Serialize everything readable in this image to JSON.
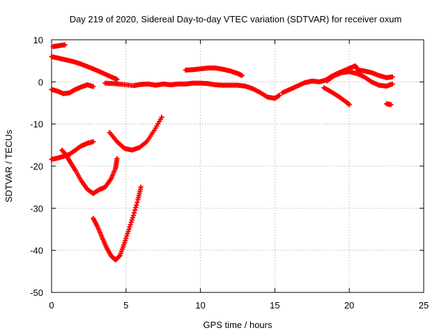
{
  "chart_data": {
    "type": "scatter",
    "title": "Day 219 of 2020, Sidereal Day-to-day VTEC variation (SDTVAR) for receiver oxum",
    "xlabel": "GPS time / hours",
    "ylabel": "SDTVAR / TECUs",
    "xlim": [
      0,
      25
    ],
    "ylim": [
      -50,
      10
    ],
    "xticks": [
      0,
      5,
      10,
      15,
      20,
      25
    ],
    "yticks": [
      10,
      0,
      -10,
      -20,
      -30,
      -40,
      -50
    ],
    "grid": true,
    "series_color": "#ff0000",
    "series": [
      {
        "name": "arc-1",
        "points": [
          [
            0.1,
            8.4
          ],
          [
            0.5,
            8.6
          ],
          [
            0.9,
            8.8
          ]
        ]
      },
      {
        "name": "arc-2",
        "points": [
          [
            0,
            6
          ],
          [
            0.5,
            5.6
          ],
          [
            1,
            5.2
          ],
          [
            1.5,
            4.8
          ],
          [
            2,
            4.2
          ],
          [
            2.5,
            3.5
          ],
          [
            3,
            2.8
          ],
          [
            3.5,
            2
          ],
          [
            4,
            1.2
          ],
          [
            4.4,
            0.6
          ]
        ]
      },
      {
        "name": "arc-3",
        "points": [
          [
            0,
            -1.8
          ],
          [
            0.4,
            -2.2
          ],
          [
            0.8,
            -2.8
          ],
          [
            1.2,
            -2.6
          ],
          [
            1.6,
            -1.8
          ],
          [
            2,
            -1.2
          ],
          [
            2.4,
            -0.7
          ],
          [
            2.8,
            -1.1
          ]
        ]
      },
      {
        "name": "arc-4",
        "points": [
          [
            3.6,
            -0.3
          ],
          [
            4.2,
            -0.4
          ],
          [
            4.8,
            -0.6
          ],
          [
            5.5,
            -0.9
          ],
          [
            6,
            -0.6
          ],
          [
            6.5,
            -0.5
          ],
          [
            7,
            -0.8
          ],
          [
            7.5,
            -0.5
          ],
          [
            8,
            -0.7
          ],
          [
            8.5,
            -0.5
          ],
          [
            9,
            -0.5
          ],
          [
            9.5,
            -0.3
          ],
          [
            10,
            -0.3
          ],
          [
            10.5,
            -0.4
          ],
          [
            11,
            -0.7
          ],
          [
            11.5,
            -0.8
          ],
          [
            12,
            -0.8
          ],
          [
            12.5,
            -0.8
          ],
          [
            13,
            -1
          ],
          [
            13.5,
            -1.6
          ],
          [
            14,
            -2.5
          ],
          [
            14.5,
            -3.6
          ],
          [
            15,
            -3.9
          ],
          [
            15.3,
            -3.2
          ]
        ]
      },
      {
        "name": "arc-5",
        "points": [
          [
            9.0,
            2.8
          ],
          [
            9.5,
            2.9
          ],
          [
            10,
            3.1
          ],
          [
            10.5,
            3.3
          ],
          [
            11,
            3.3
          ],
          [
            11.5,
            3
          ],
          [
            12,
            2.6
          ],
          [
            12.5,
            2
          ],
          [
            12.8,
            1.5
          ]
        ]
      },
      {
        "name": "arc-6",
        "points": [
          [
            15.5,
            -2.6
          ],
          [
            16,
            -1.8
          ],
          [
            16.5,
            -1
          ],
          [
            17,
            -0.2
          ],
          [
            17.5,
            0.2
          ],
          [
            18,
            0
          ],
          [
            18.4,
            0.4
          ],
          [
            18.8,
            1.3
          ],
          [
            19.2,
            2
          ],
          [
            19.6,
            2.6
          ],
          [
            20,
            3.2
          ],
          [
            20.4,
            3.8
          ],
          [
            20.6,
            2.8
          ],
          [
            21,
            2.6
          ],
          [
            21.5,
            2.2
          ],
          [
            22,
            1.5
          ],
          [
            22.5,
            1
          ],
          [
            22.9,
            1.2
          ]
        ]
      },
      {
        "name": "arc-7",
        "points": [
          [
            18.5,
            0.2
          ],
          [
            19,
            1.5
          ],
          [
            19.5,
            2.2
          ],
          [
            20,
            2.4
          ],
          [
            20.5,
            2
          ],
          [
            21,
            1.2
          ],
          [
            21.5,
            0
          ],
          [
            22,
            -0.8
          ],
          [
            22.5,
            -1
          ],
          [
            22.9,
            -0.5
          ]
        ]
      },
      {
        "name": "arc-8",
        "points": [
          [
            18.3,
            -1.4
          ],
          [
            18.8,
            -2.4
          ],
          [
            19.3,
            -3.5
          ],
          [
            19.8,
            -4.8
          ],
          [
            20,
            -5.4
          ]
        ]
      },
      {
        "name": "arc-9",
        "points": [
          [
            22.5,
            -5.2
          ],
          [
            22.8,
            -5.4
          ]
        ]
      },
      {
        "name": "arc-10",
        "points": [
          [
            0,
            -18.4
          ],
          [
            0.4,
            -18.1
          ],
          [
            0.8,
            -17.7
          ],
          [
            1.2,
            -17.2
          ],
          [
            1.6,
            -16.2
          ],
          [
            2,
            -15.2
          ],
          [
            2.4,
            -14.6
          ],
          [
            2.8,
            -14.2
          ]
        ]
      },
      {
        "name": "arc-11",
        "points": [
          [
            0.7,
            -16.2
          ],
          [
            1,
            -17.5
          ],
          [
            1.3,
            -19.3
          ],
          [
            1.6,
            -21
          ],
          [
            2,
            -23.5
          ],
          [
            2.4,
            -25.5
          ],
          [
            2.8,
            -26.5
          ],
          [
            3.2,
            -25.6
          ],
          [
            3.6,
            -25
          ],
          [
            4,
            -23
          ],
          [
            4.3,
            -20.5
          ],
          [
            4.4,
            -18.2
          ]
        ]
      },
      {
        "name": "arc-12",
        "points": [
          [
            3.9,
            -12
          ],
          [
            4.4,
            -14.2
          ],
          [
            4.9,
            -15.8
          ],
          [
            5.4,
            -16.2
          ],
          [
            5.9,
            -15.6
          ],
          [
            6.4,
            -14.2
          ],
          [
            6.9,
            -11.5
          ],
          [
            7.4,
            -8.4
          ]
        ]
      },
      {
        "name": "arc-13",
        "points": [
          [
            2.8,
            -32.4
          ],
          [
            3.1,
            -34.5
          ],
          [
            3.4,
            -37
          ],
          [
            3.7,
            -39.4
          ],
          [
            4,
            -41.3
          ],
          [
            4.3,
            -42.3
          ],
          [
            4.6,
            -41.2
          ],
          [
            4.9,
            -38.2
          ],
          [
            5.2,
            -35
          ],
          [
            5.5,
            -31.7
          ],
          [
            5.8,
            -28
          ],
          [
            6,
            -25
          ]
        ]
      }
    ]
  }
}
